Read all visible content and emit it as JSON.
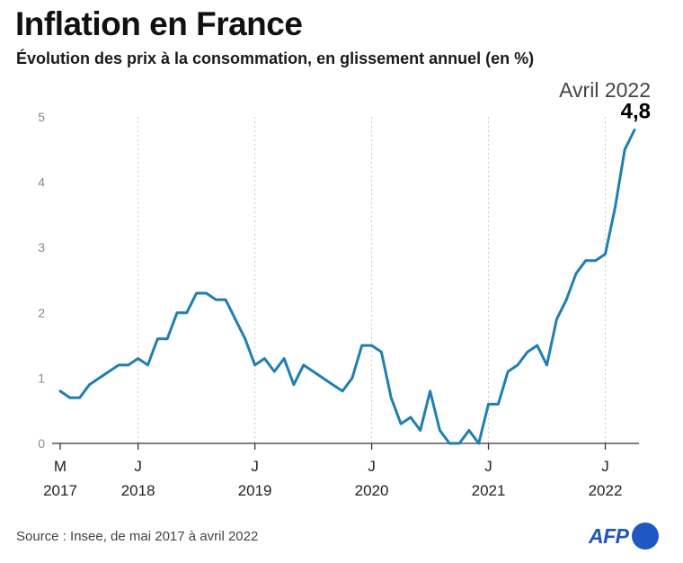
{
  "header": {
    "title": "Inflation en France",
    "subtitle": "Évolution des prix à la consommation, en glissement annuel (en %)"
  },
  "annotation": {
    "label": "Avril 2022",
    "value_text": "4,8"
  },
  "footer": {
    "source": "Source : Insee, de mai 2017 à avril 2022",
    "logo_text": "AFP"
  },
  "colors": {
    "line": "#1f7fb0",
    "grid": "#c9c9c9",
    "axis": "#333333",
    "tick_text": "#8a8a8a",
    "logo": "#1f57c3"
  },
  "chart_data": {
    "type": "line",
    "title": "Inflation en France",
    "subtitle": "Évolution des prix à la consommation, en glissement annuel (en %)",
    "xlabel": "",
    "ylabel": "",
    "ylim": [
      0,
      5
    ],
    "y_ticks": [
      "0",
      "1",
      "2",
      "3",
      "4",
      "5"
    ],
    "grid": "vertical dotted at January ticks",
    "x_start": "2017-05",
    "x_end": "2022-04",
    "x_ticks": [
      {
        "month": "2017-05",
        "letter": "M",
        "year": "2017"
      },
      {
        "month": "2018-01",
        "letter": "J",
        "year": "2018"
      },
      {
        "month": "2019-01",
        "letter": "J",
        "year": "2019"
      },
      {
        "month": "2020-01",
        "letter": "J",
        "year": "2020"
      },
      {
        "month": "2021-01",
        "letter": "J",
        "year": "2021"
      },
      {
        "month": "2022-01",
        "letter": "J",
        "year": "2022"
      }
    ],
    "series": [
      {
        "x": [
          "2017-05",
          "2017-06",
          "2017-07",
          "2017-08",
          "2017-09",
          "2017-10",
          "2017-11",
          "2017-12",
          "2018-01",
          "2018-02",
          "2018-03",
          "2018-04",
          "2018-05",
          "2018-06",
          "2018-07",
          "2018-08",
          "2018-09",
          "2018-10",
          "2018-11",
          "2018-12",
          "2019-01",
          "2019-02",
          "2019-03",
          "2019-04",
          "2019-05",
          "2019-06",
          "2019-07",
          "2019-08",
          "2019-09",
          "2019-10",
          "2019-11",
          "2019-12",
          "2020-01",
          "2020-02",
          "2020-03",
          "2020-04",
          "2020-05",
          "2020-06",
          "2020-07",
          "2020-08",
          "2020-09",
          "2020-10",
          "2020-11",
          "2020-12",
          "2021-01",
          "2021-02",
          "2021-03",
          "2021-04",
          "2021-05",
          "2021-06",
          "2021-07",
          "2021-08",
          "2021-09",
          "2021-10",
          "2021-11",
          "2021-12",
          "2022-01",
          "2022-02",
          "2022-03",
          "2022-04"
        ],
        "values": [
          0.8,
          0.7,
          0.7,
          0.9,
          1.0,
          1.1,
          1.2,
          1.2,
          1.3,
          1.2,
          1.6,
          1.6,
          2.0,
          2.0,
          2.3,
          2.3,
          2.2,
          2.2,
          1.9,
          1.6,
          1.2,
          1.3,
          1.1,
          1.3,
          0.9,
          1.2,
          1.1,
          1.0,
          0.9,
          0.8,
          1.0,
          1.5,
          1.5,
          1.4,
          0.7,
          0.3,
          0.4,
          0.2,
          0.8,
          0.2,
          0.0,
          0.0,
          0.2,
          0.0,
          0.6,
          0.6,
          1.1,
          1.2,
          1.4,
          1.5,
          1.2,
          1.9,
          2.2,
          2.6,
          2.8,
          2.8,
          2.9,
          3.6,
          4.5,
          4.8
        ]
      }
    ]
  }
}
